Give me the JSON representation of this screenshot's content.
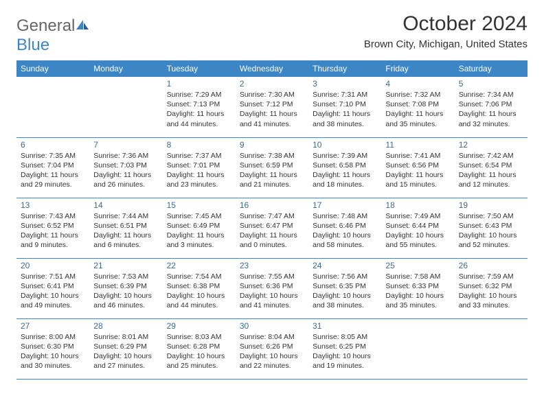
{
  "brand": {
    "part1": "General",
    "part2": "Blue"
  },
  "title": "October 2024",
  "location": "Brown City, Michigan, United States",
  "colors": {
    "header_bg": "#3d86c6",
    "header_text": "#ffffff",
    "body_text": "#333333",
    "daynum": "#3d6a90",
    "border": "#3d86c6",
    "logo_grey": "#666666",
    "logo_blue": "#3d86c6"
  },
  "day_names": [
    "Sunday",
    "Monday",
    "Tuesday",
    "Wednesday",
    "Thursday",
    "Friday",
    "Saturday"
  ],
  "weeks": [
    [
      null,
      null,
      {
        "n": "1",
        "sunrise": "7:29 AM",
        "sunset": "7:13 PM",
        "daylight": "11 hours and 44 minutes."
      },
      {
        "n": "2",
        "sunrise": "7:30 AM",
        "sunset": "7:12 PM",
        "daylight": "11 hours and 41 minutes."
      },
      {
        "n": "3",
        "sunrise": "7:31 AM",
        "sunset": "7:10 PM",
        "daylight": "11 hours and 38 minutes."
      },
      {
        "n": "4",
        "sunrise": "7:32 AM",
        "sunset": "7:08 PM",
        "daylight": "11 hours and 35 minutes."
      },
      {
        "n": "5",
        "sunrise": "7:34 AM",
        "sunset": "7:06 PM",
        "daylight": "11 hours and 32 minutes."
      }
    ],
    [
      {
        "n": "6",
        "sunrise": "7:35 AM",
        "sunset": "7:04 PM",
        "daylight": "11 hours and 29 minutes."
      },
      {
        "n": "7",
        "sunrise": "7:36 AM",
        "sunset": "7:03 PM",
        "daylight": "11 hours and 26 minutes."
      },
      {
        "n": "8",
        "sunrise": "7:37 AM",
        "sunset": "7:01 PM",
        "daylight": "11 hours and 23 minutes."
      },
      {
        "n": "9",
        "sunrise": "7:38 AM",
        "sunset": "6:59 PM",
        "daylight": "11 hours and 21 minutes."
      },
      {
        "n": "10",
        "sunrise": "7:39 AM",
        "sunset": "6:58 PM",
        "daylight": "11 hours and 18 minutes."
      },
      {
        "n": "11",
        "sunrise": "7:41 AM",
        "sunset": "6:56 PM",
        "daylight": "11 hours and 15 minutes."
      },
      {
        "n": "12",
        "sunrise": "7:42 AM",
        "sunset": "6:54 PM",
        "daylight": "11 hours and 12 minutes."
      }
    ],
    [
      {
        "n": "13",
        "sunrise": "7:43 AM",
        "sunset": "6:52 PM",
        "daylight": "11 hours and 9 minutes."
      },
      {
        "n": "14",
        "sunrise": "7:44 AM",
        "sunset": "6:51 PM",
        "daylight": "11 hours and 6 minutes."
      },
      {
        "n": "15",
        "sunrise": "7:45 AM",
        "sunset": "6:49 PM",
        "daylight": "11 hours and 3 minutes."
      },
      {
        "n": "16",
        "sunrise": "7:47 AM",
        "sunset": "6:47 PM",
        "daylight": "11 hours and 0 minutes."
      },
      {
        "n": "17",
        "sunrise": "7:48 AM",
        "sunset": "6:46 PM",
        "daylight": "10 hours and 58 minutes."
      },
      {
        "n": "18",
        "sunrise": "7:49 AM",
        "sunset": "6:44 PM",
        "daylight": "10 hours and 55 minutes."
      },
      {
        "n": "19",
        "sunrise": "7:50 AM",
        "sunset": "6:43 PM",
        "daylight": "10 hours and 52 minutes."
      }
    ],
    [
      {
        "n": "20",
        "sunrise": "7:51 AM",
        "sunset": "6:41 PM",
        "daylight": "10 hours and 49 minutes."
      },
      {
        "n": "21",
        "sunrise": "7:53 AM",
        "sunset": "6:39 PM",
        "daylight": "10 hours and 46 minutes."
      },
      {
        "n": "22",
        "sunrise": "7:54 AM",
        "sunset": "6:38 PM",
        "daylight": "10 hours and 44 minutes."
      },
      {
        "n": "23",
        "sunrise": "7:55 AM",
        "sunset": "6:36 PM",
        "daylight": "10 hours and 41 minutes."
      },
      {
        "n": "24",
        "sunrise": "7:56 AM",
        "sunset": "6:35 PM",
        "daylight": "10 hours and 38 minutes."
      },
      {
        "n": "25",
        "sunrise": "7:58 AM",
        "sunset": "6:33 PM",
        "daylight": "10 hours and 35 minutes."
      },
      {
        "n": "26",
        "sunrise": "7:59 AM",
        "sunset": "6:32 PM",
        "daylight": "10 hours and 33 minutes."
      }
    ],
    [
      {
        "n": "27",
        "sunrise": "8:00 AM",
        "sunset": "6:30 PM",
        "daylight": "10 hours and 30 minutes."
      },
      {
        "n": "28",
        "sunrise": "8:01 AM",
        "sunset": "6:29 PM",
        "daylight": "10 hours and 27 minutes."
      },
      {
        "n": "29",
        "sunrise": "8:03 AM",
        "sunset": "6:28 PM",
        "daylight": "10 hours and 25 minutes."
      },
      {
        "n": "30",
        "sunrise": "8:04 AM",
        "sunset": "6:26 PM",
        "daylight": "10 hours and 22 minutes."
      },
      {
        "n": "31",
        "sunrise": "8:05 AM",
        "sunset": "6:25 PM",
        "daylight": "10 hours and 19 minutes."
      },
      null,
      null
    ]
  ],
  "labels": {
    "sunrise": "Sunrise: ",
    "sunset": "Sunset: ",
    "daylight": "Daylight: "
  }
}
